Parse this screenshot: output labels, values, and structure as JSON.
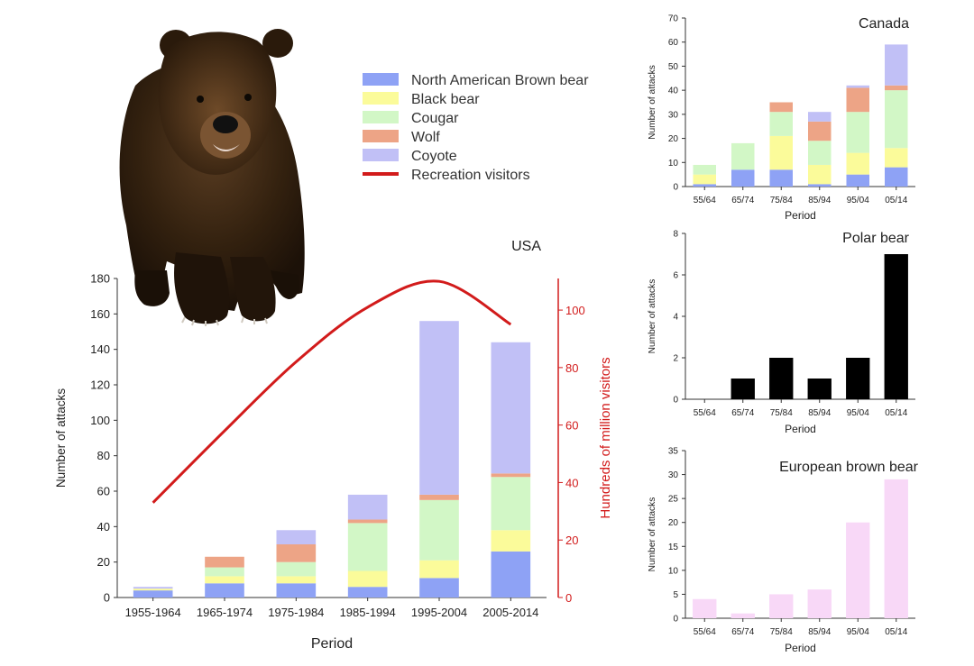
{
  "colors": {
    "brown_bear": "#8ea2f5",
    "black_bear": "#fbfb9a",
    "cougar": "#d2f7c6",
    "wolf": "#eda486",
    "coyote": "#c1c0f6",
    "visitors": "#d21b1b",
    "polar": "#000000",
    "european": "#f8d8f7",
    "axis": "#333333"
  },
  "legend": [
    {
      "label": "North American Brown bear",
      "key": "brown_bear",
      "shape": "box"
    },
    {
      "label": "Black bear",
      "key": "black_bear",
      "shape": "box"
    },
    {
      "label": "Cougar",
      "key": "cougar",
      "shape": "box"
    },
    {
      "label": "Wolf",
      "key": "wolf",
      "shape": "box"
    },
    {
      "label": "Coyote",
      "key": "coyote",
      "shape": "box"
    },
    {
      "label": "Recreation visitors",
      "key": "visitors",
      "shape": "line"
    }
  ],
  "chart_data": [
    {
      "id": "usa",
      "type": "bar",
      "stacked": true,
      "title": "USA",
      "xlabel": "Period",
      "ylabel": "Number of attacks",
      "y2label": "Hundreds of million visitors",
      "categories": [
        "1955-1964",
        "1965-1974",
        "1975-1984",
        "1985-1994",
        "1995-2004",
        "2005-2014"
      ],
      "ylim": [
        0,
        180
      ],
      "yticks": [
        0,
        20,
        40,
        60,
        80,
        100,
        120,
        140,
        160,
        180
      ],
      "y2lim": [
        0,
        111
      ],
      "y2ticks": [
        0,
        20,
        40,
        60,
        80,
        100
      ],
      "series": [
        {
          "name": "North American Brown bear",
          "key": "brown_bear",
          "values": [
            4,
            8,
            8,
            6,
            11,
            26
          ]
        },
        {
          "name": "Black bear",
          "key": "black_bear",
          "values": [
            1,
            4,
            4,
            9,
            10,
            12
          ]
        },
        {
          "name": "Cougar",
          "key": "cougar",
          "values": [
            0,
            5,
            8,
            27,
            34,
            30
          ]
        },
        {
          "name": "Wolf",
          "key": "wolf",
          "values": [
            0,
            6,
            10,
            2,
            3,
            2
          ]
        },
        {
          "name": "Coyote",
          "key": "coyote",
          "values": [
            1,
            0,
            8,
            14,
            98,
            74
          ]
        }
      ],
      "line": {
        "name": "Recreation visitors",
        "key": "visitors",
        "values": [
          33,
          58,
          82,
          101,
          110,
          95
        ]
      }
    },
    {
      "id": "canada",
      "type": "bar",
      "stacked": true,
      "title": "Canada",
      "xlabel": "Period",
      "ylabel": "Number of attacks",
      "categories": [
        "55/64",
        "65/74",
        "75/84",
        "85/94",
        "95/04",
        "05/14"
      ],
      "ylim": [
        0,
        70
      ],
      "yticks": [
        0,
        10,
        20,
        30,
        40,
        50,
        60,
        70
      ],
      "series": [
        {
          "name": "North American Brown bear",
          "key": "brown_bear",
          "values": [
            1,
            7,
            7,
            1,
            5,
            8
          ]
        },
        {
          "name": "Black bear",
          "key": "black_bear",
          "values": [
            4,
            0,
            14,
            8,
            9,
            8
          ]
        },
        {
          "name": "Cougar",
          "key": "cougar",
          "values": [
            4,
            11,
            10,
            10,
            17,
            24
          ]
        },
        {
          "name": "Wolf",
          "key": "wolf",
          "values": [
            0,
            0,
            4,
            8,
            10,
            2
          ]
        },
        {
          "name": "Coyote",
          "key": "coyote",
          "values": [
            0,
            0,
            0,
            4,
            1,
            17
          ]
        }
      ]
    },
    {
      "id": "polar",
      "type": "bar",
      "title": "Polar bear",
      "xlabel": "Period",
      "ylabel": "Number of attacks",
      "categories": [
        "55/64",
        "65/74",
        "75/84",
        "85/94",
        "95/04",
        "05/14"
      ],
      "ylim": [
        0,
        8
      ],
      "yticks": [
        0,
        2,
        4,
        6,
        8
      ],
      "series": [
        {
          "key": "polar",
          "values": [
            0,
            1,
            2,
            1,
            2,
            7
          ]
        }
      ]
    },
    {
      "id": "european",
      "type": "bar",
      "title": "European brown bear",
      "xlabel": "Period",
      "ylabel": "Number of attacks",
      "categories": [
        "55/64",
        "65/74",
        "75/84",
        "85/94",
        "95/04",
        "05/14"
      ],
      "ylim": [
        0,
        35
      ],
      "yticks": [
        0,
        5,
        10,
        15,
        20,
        25,
        30,
        35
      ],
      "series": [
        {
          "key": "european",
          "values": [
            4,
            1,
            5,
            6,
            20,
            29
          ]
        }
      ]
    }
  ]
}
